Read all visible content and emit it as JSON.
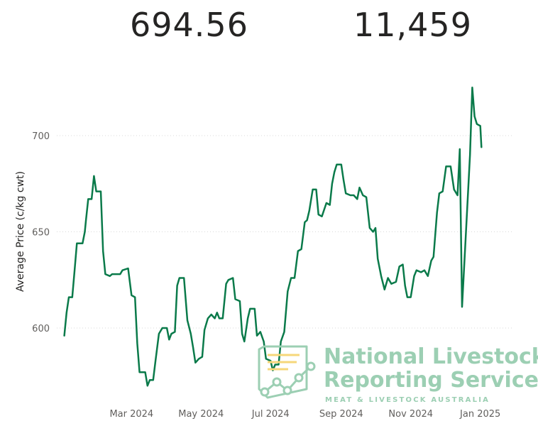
{
  "kpis": [
    {
      "value": "694.56"
    },
    {
      "value": "11,459"
    }
  ],
  "colors": {
    "line": "#0a7a4a",
    "grid": "#d9d9d9",
    "watermark": "#9ccfb3",
    "watermark_accent": "#f6d77a"
  },
  "watermark": {
    "line1": "National Livestock",
    "line2": "Reporting Service",
    "line3": "MEAT & LIVESTOCK AUSTRALIA"
  },
  "chart_data": {
    "type": "line",
    "ylabel": "Average Price (c/kg cwt)",
    "xlabel": "",
    "ylim": [
      565,
      730
    ],
    "yticks": [
      600,
      650,
      700
    ],
    "xticks": [
      {
        "label": "Mar 2024",
        "date": "2024-03-01"
      },
      {
        "label": "May 2024",
        "date": "2024-05-01"
      },
      {
        "label": "Jul 2024",
        "date": "2024-07-01"
      },
      {
        "label": "Sep 2024",
        "date": "2024-09-01"
      },
      {
        "label": "Nov 2024",
        "date": "2024-11-01"
      },
      {
        "label": "Jan 2025",
        "date": "2025-01-01"
      }
    ],
    "xlim": [
      "2024-01-01",
      "2025-01-23"
    ],
    "grid": true,
    "series": [
      {
        "values": [
          [
            "2024-01-02",
            596
          ],
          [
            "2024-01-04",
            608
          ],
          [
            "2024-01-06",
            616
          ],
          [
            "2024-01-09",
            616
          ],
          [
            "2024-01-11",
            630
          ],
          [
            "2024-01-13",
            644
          ],
          [
            "2024-01-18",
            644
          ],
          [
            "2024-01-20",
            650
          ],
          [
            "2024-01-21",
            656
          ],
          [
            "2024-01-23",
            667
          ],
          [
            "2024-01-26",
            667
          ],
          [
            "2024-01-28",
            679
          ],
          [
            "2024-01-30",
            671
          ],
          [
            "2024-02-03",
            671
          ],
          [
            "2024-02-05",
            640
          ],
          [
            "2024-02-07",
            628
          ],
          [
            "2024-02-11",
            627
          ],
          [
            "2024-02-13",
            628
          ],
          [
            "2024-02-20",
            628
          ],
          [
            "2024-02-22",
            630
          ],
          [
            "2024-02-27",
            631
          ],
          [
            "2024-03-01",
            617
          ],
          [
            "2024-03-04",
            616
          ],
          [
            "2024-03-06",
            592
          ],
          [
            "2024-03-08",
            577
          ],
          [
            "2024-03-13",
            577
          ],
          [
            "2024-03-15",
            570
          ],
          [
            "2024-03-17",
            573
          ],
          [
            "2024-03-20",
            573
          ],
          [
            "2024-03-22",
            583
          ],
          [
            "2024-03-25",
            597
          ],
          [
            "2024-03-28",
            600
          ],
          [
            "2024-04-01",
            600
          ],
          [
            "2024-04-03",
            594
          ],
          [
            "2024-04-05",
            597
          ],
          [
            "2024-04-08",
            598
          ],
          [
            "2024-04-10",
            622
          ],
          [
            "2024-04-12",
            626
          ],
          [
            "2024-04-16",
            626
          ],
          [
            "2024-04-19",
            604
          ],
          [
            "2024-04-22",
            597
          ],
          [
            "2024-04-24",
            590
          ],
          [
            "2024-04-26",
            582
          ],
          [
            "2024-04-29",
            584
          ],
          [
            "2024-05-02",
            585
          ],
          [
            "2024-05-04",
            599
          ],
          [
            "2024-05-07",
            605
          ],
          [
            "2024-05-10",
            607
          ],
          [
            "2024-05-13",
            605
          ],
          [
            "2024-05-15",
            608
          ],
          [
            "2024-05-17",
            605
          ],
          [
            "2024-05-20",
            605
          ],
          [
            "2024-05-23",
            623
          ],
          [
            "2024-05-25",
            625
          ],
          [
            "2024-05-29",
            626
          ],
          [
            "2024-05-31",
            615
          ],
          [
            "2024-06-04",
            614
          ],
          [
            "2024-06-06",
            597
          ],
          [
            "2024-06-08",
            593
          ],
          [
            "2024-06-11",
            605
          ],
          [
            "2024-06-13",
            610
          ],
          [
            "2024-06-17",
            610
          ],
          [
            "2024-06-19",
            596
          ],
          [
            "2024-06-22",
            598
          ],
          [
            "2024-06-25",
            593
          ],
          [
            "2024-06-27",
            584
          ],
          [
            "2024-07-01",
            583
          ],
          [
            "2024-07-03",
            578
          ],
          [
            "2024-07-05",
            581
          ],
          [
            "2024-07-08",
            581
          ],
          [
            "2024-07-10",
            593
          ],
          [
            "2024-07-13",
            598
          ],
          [
            "2024-07-16",
            619
          ],
          [
            "2024-07-19",
            626
          ],
          [
            "2024-07-22",
            626
          ],
          [
            "2024-07-25",
            640
          ],
          [
            "2024-07-28",
            641
          ],
          [
            "2024-07-31",
            655
          ],
          [
            "2024-08-02",
            656
          ],
          [
            "2024-08-04",
            661
          ],
          [
            "2024-08-07",
            672
          ],
          [
            "2024-08-10",
            672
          ],
          [
            "2024-08-12",
            659
          ],
          [
            "2024-08-15",
            658
          ],
          [
            "2024-08-19",
            665
          ],
          [
            "2024-08-22",
            664
          ],
          [
            "2024-08-24",
            675
          ],
          [
            "2024-08-26",
            681
          ],
          [
            "2024-08-28",
            685
          ],
          [
            "2024-09-01",
            685
          ],
          [
            "2024-09-03",
            677
          ],
          [
            "2024-09-05",
            670
          ],
          [
            "2024-09-09",
            669
          ],
          [
            "2024-09-12",
            669
          ],
          [
            "2024-09-15",
            667
          ],
          [
            "2024-09-17",
            673
          ],
          [
            "2024-09-20",
            669
          ],
          [
            "2024-09-23",
            668
          ],
          [
            "2024-09-26",
            652
          ],
          [
            "2024-09-29",
            650
          ],
          [
            "2024-10-01",
            652
          ],
          [
            "2024-10-03",
            636
          ],
          [
            "2024-10-06",
            627
          ],
          [
            "2024-10-09",
            620
          ],
          [
            "2024-10-12",
            626
          ],
          [
            "2024-10-15",
            623
          ],
          [
            "2024-10-19",
            624
          ],
          [
            "2024-10-22",
            632
          ],
          [
            "2024-10-25",
            633
          ],
          [
            "2024-10-27",
            622
          ],
          [
            "2024-10-29",
            616
          ],
          [
            "2024-11-01",
            616
          ],
          [
            "2024-11-04",
            627
          ],
          [
            "2024-11-06",
            630
          ],
          [
            "2024-11-10",
            629
          ],
          [
            "2024-11-13",
            630
          ],
          [
            "2024-11-16",
            627
          ],
          [
            "2024-11-19",
            635
          ],
          [
            "2024-11-21",
            637
          ],
          [
            "2024-11-24",
            660
          ],
          [
            "2024-11-26",
            670
          ],
          [
            "2024-11-29",
            671
          ],
          [
            "2024-12-02",
            684
          ],
          [
            "2024-12-06",
            684
          ],
          [
            "2024-12-09",
            672
          ],
          [
            "2024-12-12",
            669
          ],
          [
            "2024-12-14",
            693
          ],
          [
            "2024-12-16",
            611
          ],
          [
            "2024-12-23",
            690
          ],
          [
            "2024-12-25",
            725
          ],
          [
            "2024-12-27",
            710
          ],
          [
            "2024-12-29",
            706
          ],
          [
            "2025-01-01",
            705
          ],
          [
            "2025-01-02",
            694
          ]
        ]
      }
    ]
  }
}
